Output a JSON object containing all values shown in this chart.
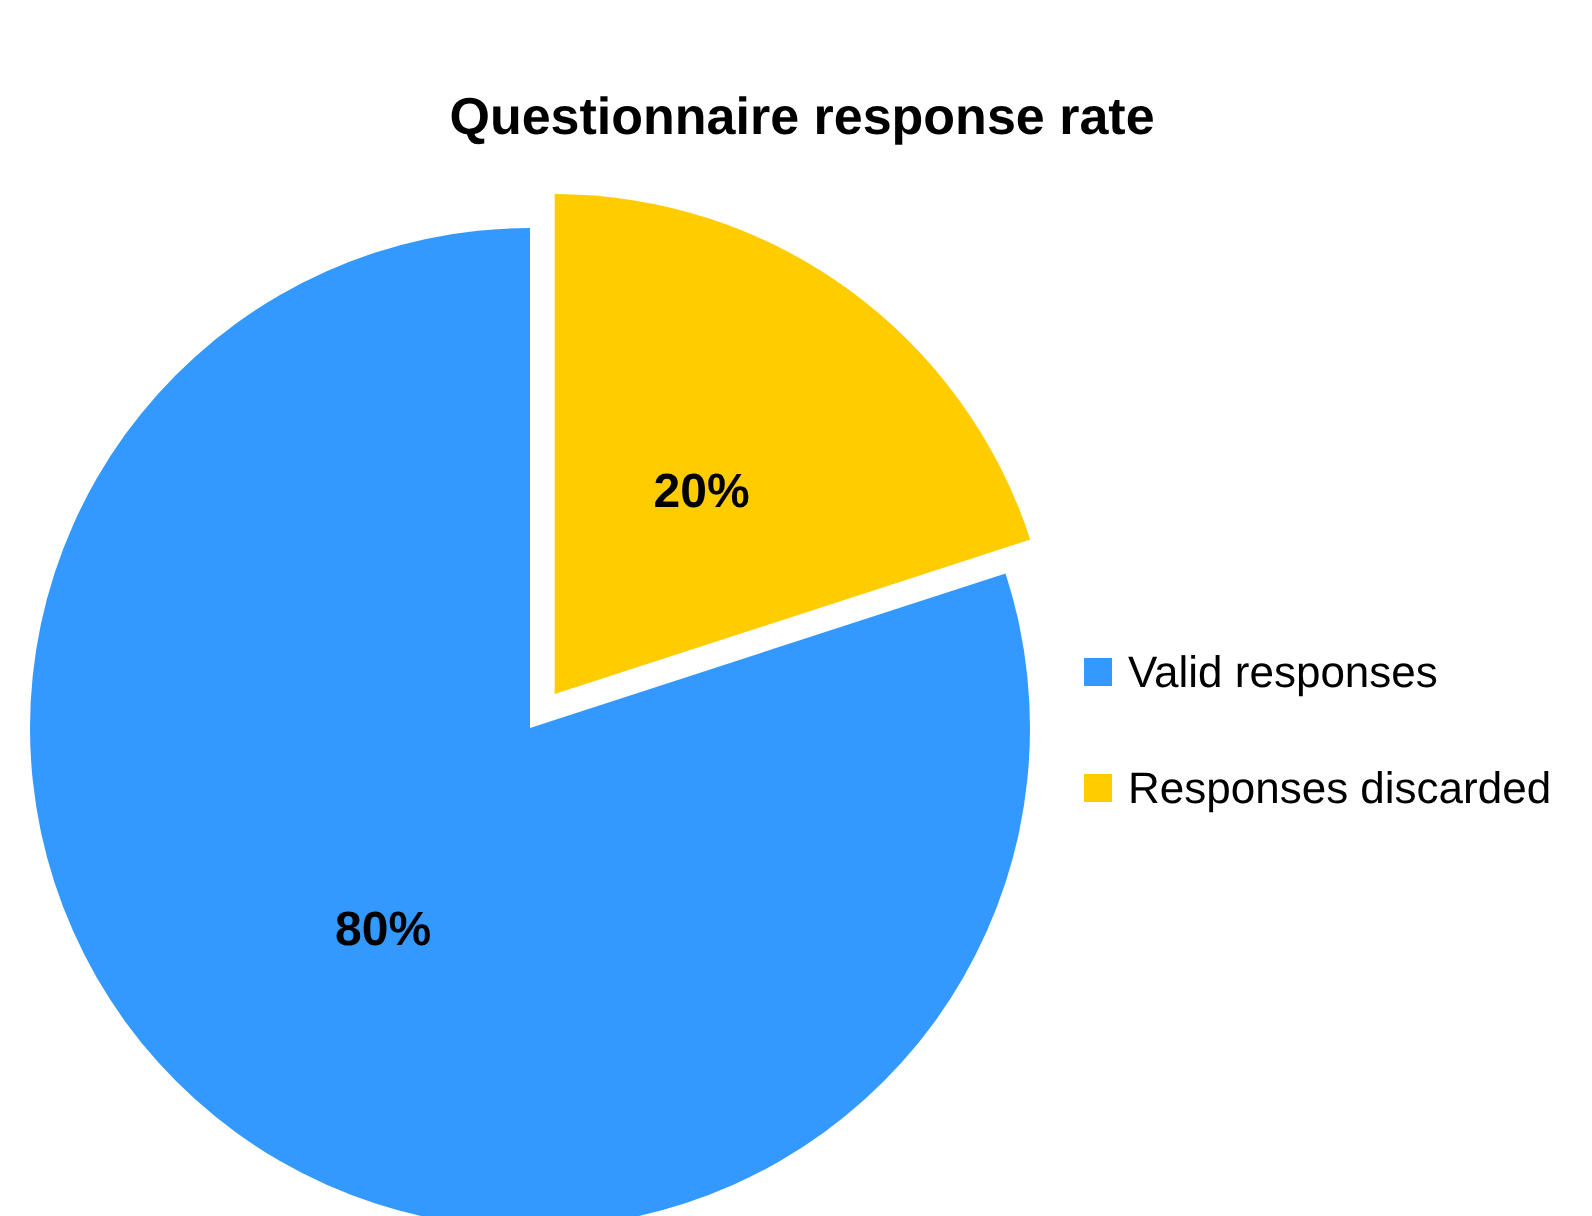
{
  "chart_data": {
    "type": "pie",
    "title": "Questionnaire response rate",
    "categories": [
      "Valid responses",
      "Responses discarded"
    ],
    "values": [
      80,
      20
    ],
    "colors": [
      "#3399ff",
      "#ffcc00"
    ],
    "value_labels": [
      "80%",
      "20%"
    ],
    "legend": "right"
  }
}
